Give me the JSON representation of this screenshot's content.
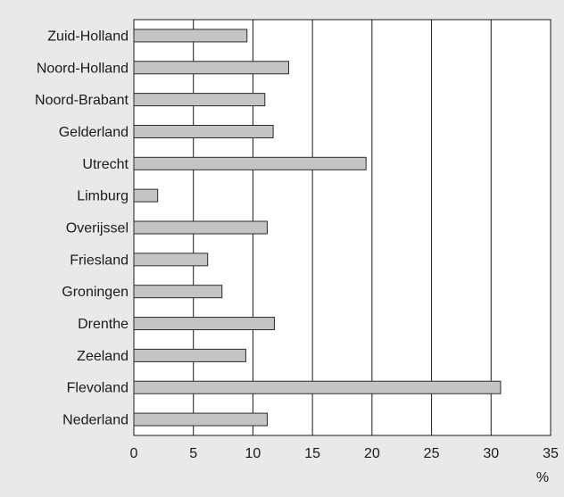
{
  "chart_data": {
    "type": "bar",
    "orientation": "horizontal",
    "categories": [
      "Zuid-Holland",
      "Noord-Holland",
      "Noord-Brabant",
      "Gelderland",
      "Utrecht",
      "Limburg",
      "Overijssel",
      "Friesland",
      "Groningen",
      "Drenthe",
      "Zeeland",
      "Flevoland",
      "Nederland"
    ],
    "values": [
      9.5,
      13.0,
      11.0,
      11.7,
      19.5,
      2.0,
      11.2,
      6.2,
      7.4,
      11.8,
      9.4,
      30.8,
      11.2
    ],
    "title": "",
    "xlabel": "%",
    "ylabel": "",
    "xlim": [
      0,
      35
    ],
    "xticks": [
      "0",
      "5",
      "10",
      "15",
      "20",
      "25",
      "30",
      "35"
    ],
    "grid": "vertical",
    "legend": "none",
    "colors": {
      "bar_fill": "#c4c4c4",
      "bar_stroke": "#2a2a2a",
      "plot_background": "#ffffff",
      "figure_background": "#e9e9e9",
      "grid": "#1a1a1a"
    }
  }
}
